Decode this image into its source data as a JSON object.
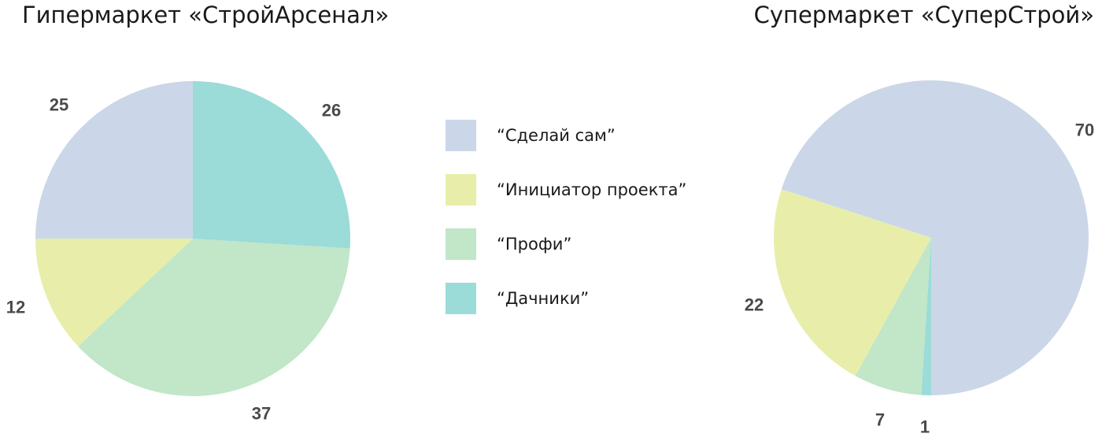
{
  "legend": [
    {
      "label": "“Сделай сам”",
      "color": "#cbd7e8"
    },
    {
      "label": "“Инициатор проекта”",
      "color": "#e8eeaa"
    },
    {
      "label": "“Профи”",
      "color": "#c2e6c8"
    },
    {
      "label": "“Дачники”",
      "color": "#9bdbd8"
    }
  ],
  "chart_data": [
    {
      "type": "pie",
      "title": "Гипермаркет «СтройАрсенал»",
      "categories": [
        "“Сделай сам”",
        "“Инициатор проекта”",
        "“Профи”",
        "“Дачники”"
      ],
      "values": [
        25,
        12,
        37,
        26
      ],
      "colors": [
        "#cbd7e8",
        "#e8eeaa",
        "#c2e6c8",
        "#9bdbd8"
      ],
      "data_labels": [
        "25",
        "12",
        "37",
        "26"
      ]
    },
    {
      "type": "pie",
      "title": "Супермаркет «СуперСтрой»",
      "categories": [
        "“Сделай сам”",
        "“Инициатор проекта”",
        "“Профи”",
        "“Дачники”"
      ],
      "values": [
        70,
        22,
        7,
        1
      ],
      "colors": [
        "#cbd7e8",
        "#e8eeaa",
        "#c2e6c8",
        "#9bdbd8"
      ],
      "data_labels": [
        "70",
        "22",
        "7",
        "1"
      ]
    }
  ]
}
